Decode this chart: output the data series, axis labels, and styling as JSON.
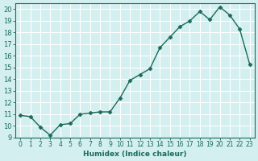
{
  "x": [
    0,
    1,
    2,
    3,
    4,
    5,
    6,
    7,
    8,
    9,
    10,
    11,
    12,
    13,
    14,
    15,
    16,
    17,
    18,
    19,
    20,
    21,
    22,
    23
  ],
  "y": [
    10.9,
    10.8,
    9.9,
    9.2,
    10.1,
    10.2,
    11.0,
    11.1,
    11.2,
    11.2,
    12.4,
    13.9,
    14.4,
    14.9,
    16.7,
    17.6,
    18.5,
    19.0,
    19.8,
    19.1,
    20.2,
    19.5,
    18.3,
    15.3
  ],
  "xlabel": "Humidex (Indice chaleur)",
  "ylim": [
    9,
    20.5
  ],
  "xlim": [
    -0.5,
    23.5
  ],
  "yticks": [
    9,
    10,
    11,
    12,
    13,
    14,
    15,
    16,
    17,
    18,
    19,
    20
  ],
  "xticks": [
    0,
    1,
    2,
    3,
    4,
    5,
    6,
    7,
    8,
    9,
    10,
    11,
    12,
    13,
    14,
    15,
    16,
    17,
    18,
    19,
    20,
    21,
    22,
    23
  ],
  "line_color": "#1a6b5a",
  "marker_color": "#1a6b5a",
  "bg_color": "#d4efef",
  "grid_color": "#ffffff",
  "axis_color": "#1a6b5a",
  "tick_label_color": "#1a6b5a",
  "xlabel_color": "#1a6b5a"
}
